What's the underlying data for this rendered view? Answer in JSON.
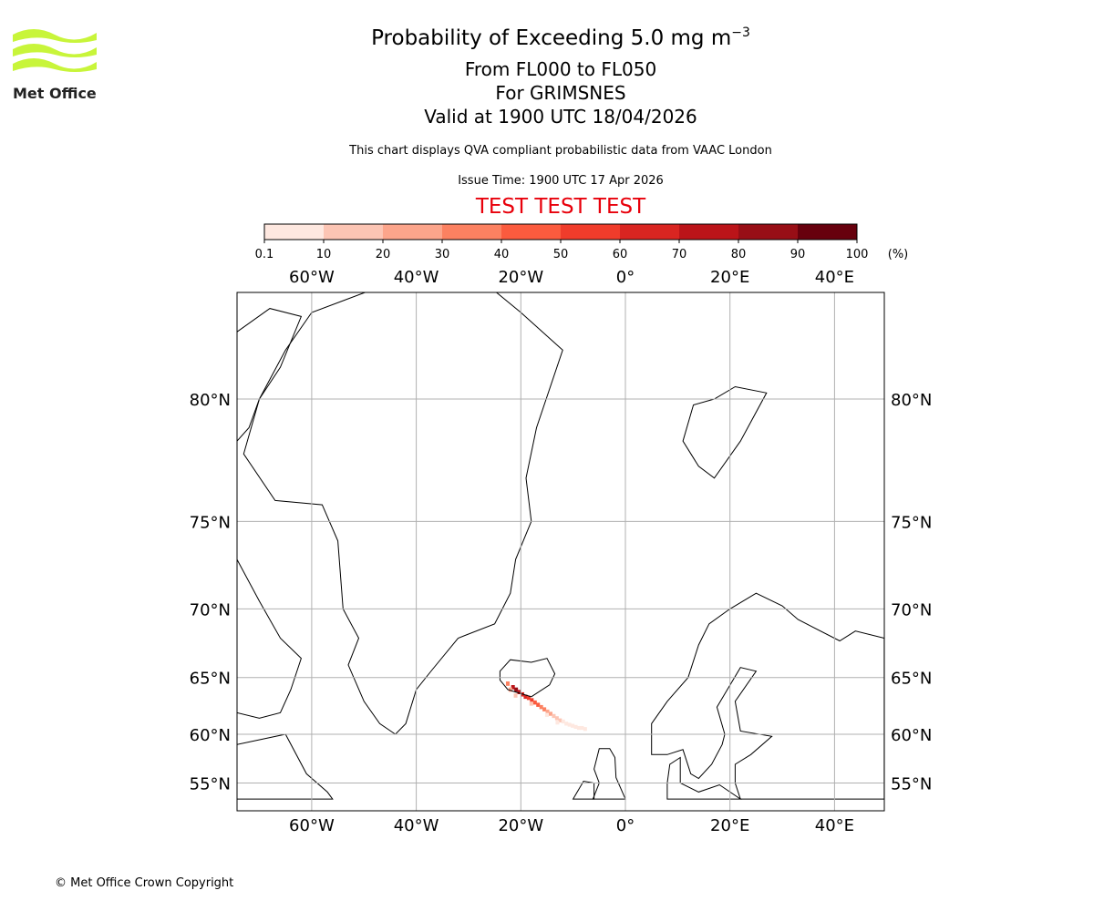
{
  "logo": {
    "text": "Met Office",
    "color": "#c8f53a"
  },
  "title": {
    "main": "Probability of Exceeding 5.0 mg m",
    "superscript": "−3",
    "levels": "From FL000 to FL050",
    "source": "For GRIMSNES",
    "valid": "Valid at 1900 UTC 18/04/2026"
  },
  "subtitle": "This chart displays QVA compliant probabilistic data from VAAC London",
  "issue_time": "Issue Time: 1900 UTC 17 Apr 2026",
  "test_banner": "TEST TEST TEST",
  "copyright": "© Met Office Crown Copyright",
  "chart_data": {
    "type": "heatmap",
    "projection": "mercator",
    "extent": {
      "lon": [
        -74.3,
        49.5
      ],
      "lat": [
        53.2,
        83.6
      ]
    },
    "colorbar": {
      "ticks": [
        "0.1",
        "10",
        "20",
        "30",
        "40",
        "50",
        "60",
        "70",
        "80",
        "90",
        "100"
      ],
      "unit": "(%)",
      "colors": [
        "#fee8e0",
        "#fcc5b4",
        "#fca58b",
        "#fc8161",
        "#fb5b3e",
        "#f03c2b",
        "#d92521",
        "#bb1419",
        "#980e16",
        "#67000d"
      ]
    },
    "lon_ticks": [
      {
        "v": -60,
        "label": "60°W"
      },
      {
        "v": -40,
        "label": "40°W"
      },
      {
        "v": -20,
        "label": "20°W"
      },
      {
        "v": 0,
        "label": "0°"
      },
      {
        "v": 20,
        "label": "20°E"
      },
      {
        "v": 40,
        "label": "40°E"
      }
    ],
    "lat_ticks": [
      {
        "v": 55,
        "label": "55°N"
      },
      {
        "v": 60,
        "label": "60°N"
      },
      {
        "v": 65,
        "label": "65°N"
      },
      {
        "v": 70,
        "label": "70°N"
      },
      {
        "v": 75,
        "label": "75°N"
      },
      {
        "v": 80,
        "label": "80°N"
      }
    ],
    "cells": [
      {
        "lon": -21.5,
        "lat": 64.2,
        "p": 70
      },
      {
        "lon": -20.9,
        "lat": 64.0,
        "p": 85
      },
      {
        "lon": -20.3,
        "lat": 63.8,
        "p": 75
      },
      {
        "lon": -19.7,
        "lat": 63.6,
        "p": 65
      },
      {
        "lon": -19.1,
        "lat": 63.4,
        "p": 60
      },
      {
        "lon": -18.5,
        "lat": 63.3,
        "p": 55
      },
      {
        "lon": -17.9,
        "lat": 63.1,
        "p": 50
      },
      {
        "lon": -17.3,
        "lat": 62.9,
        "p": 45
      },
      {
        "lon": -16.7,
        "lat": 62.7,
        "p": 40
      },
      {
        "lon": -16.1,
        "lat": 62.5,
        "p": 35
      },
      {
        "lon": -15.5,
        "lat": 62.3,
        "p": 30
      },
      {
        "lon": -14.9,
        "lat": 62.1,
        "p": 25
      },
      {
        "lon": -14.3,
        "lat": 61.9,
        "p": 20
      },
      {
        "lon": -13.7,
        "lat": 61.7,
        "p": 15
      },
      {
        "lon": -13.1,
        "lat": 61.5,
        "p": 12
      },
      {
        "lon": -12.5,
        "lat": 61.3,
        "p": 10
      },
      {
        "lon": -11.9,
        "lat": 61.2,
        "p": 8
      },
      {
        "lon": -11.3,
        "lat": 61.0,
        "p": 6
      },
      {
        "lon": -10.7,
        "lat": 60.9,
        "p": 5
      },
      {
        "lon": -10.1,
        "lat": 60.8,
        "p": 3
      },
      {
        "lon": -9.5,
        "lat": 60.7,
        "p": 2
      },
      {
        "lon": -8.9,
        "lat": 60.6,
        "p": 1
      },
      {
        "lon": -8.3,
        "lat": 60.6,
        "p": 1
      },
      {
        "lon": -7.7,
        "lat": 60.5,
        "p": 0.5
      },
      {
        "lon": -22.5,
        "lat": 64.5,
        "p": 30
      },
      {
        "lon": -22.0,
        "lat": 64.0,
        "p": 20
      },
      {
        "lon": -21.0,
        "lat": 63.5,
        "p": 10
      },
      {
        "lon": -18.0,
        "lat": 62.8,
        "p": 15
      },
      {
        "lon": -15.0,
        "lat": 61.8,
        "p": 8
      },
      {
        "lon": -13.0,
        "lat": 61.1,
        "p": 3
      }
    ]
  }
}
